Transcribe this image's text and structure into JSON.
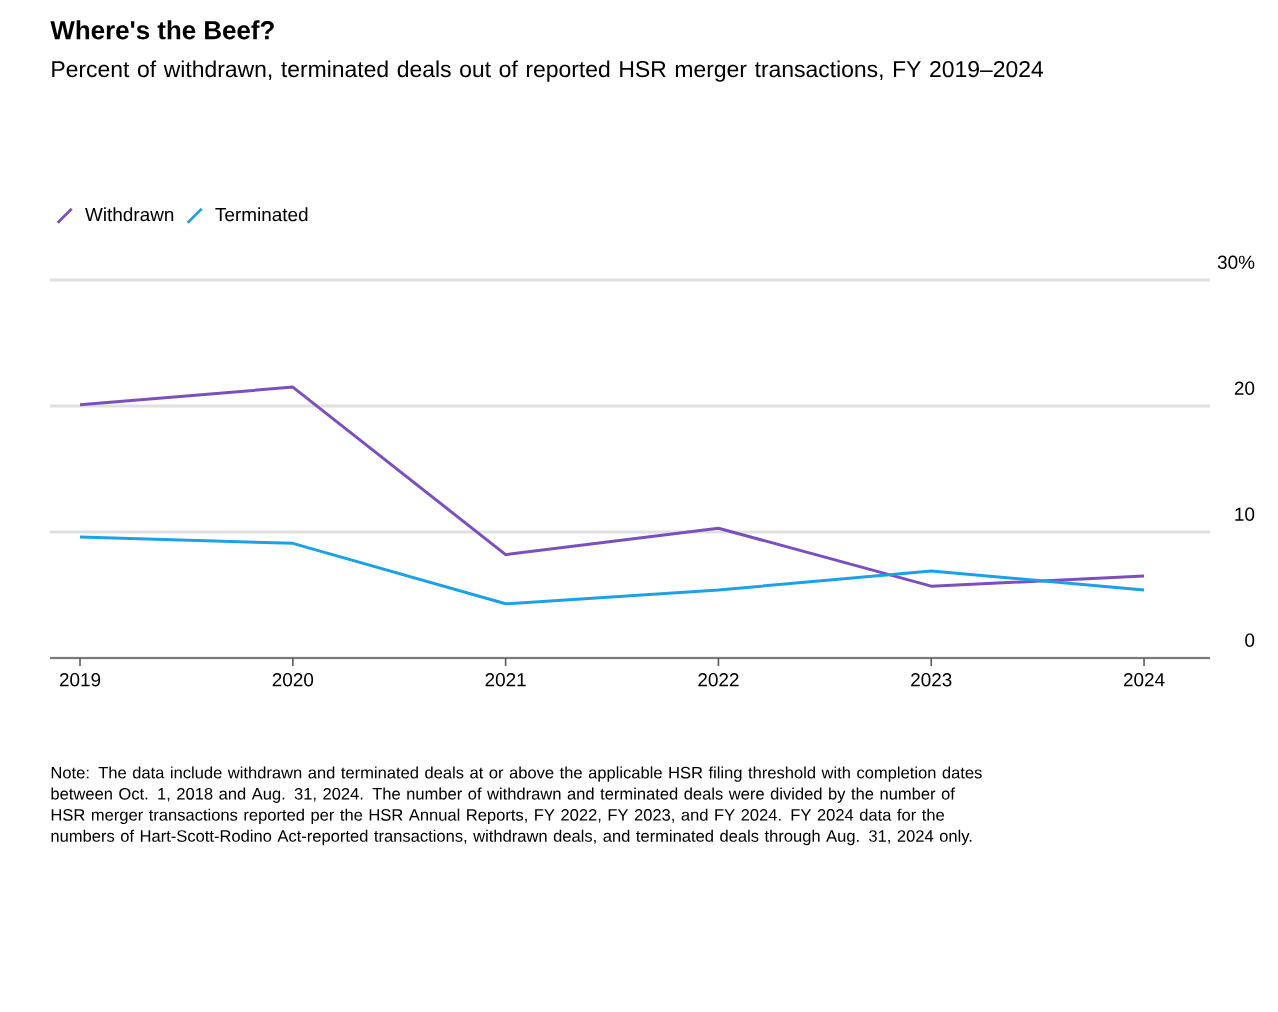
{
  "chart_data": {
    "type": "line",
    "title": "Where's the Beef?",
    "subtitle": "Percent of withdrawn, terminated deals out of reported HSR merger transactions, FY 2019–2024",
    "categories": [
      "2019",
      "2020",
      "2021",
      "2022",
      "2023",
      "2024"
    ],
    "series": [
      {
        "name": "Withdrawn",
        "color": "#7b4fbe",
        "values": [
          20.1,
          21.5,
          8.2,
          10.3,
          5.7,
          6.5
        ]
      },
      {
        "name": "Terminated",
        "color": "#1ea0e6",
        "values": [
          9.6,
          9.1,
          4.3,
          5.4,
          6.9,
          5.4
        ]
      }
    ],
    "ylim": [
      0,
      30
    ],
    "yticks": [
      0,
      10,
      20,
      {
        "value": 30,
        "label": "30%"
      }
    ],
    "grid": "y",
    "legend": "top left",
    "line_style": "solid",
    "annotations": [
      "Note: The data include withdrawn and terminated deals at or above the applicable HSR filing threshold with completion dates between Oct. 1, 2018 and Aug. 31, 2024. The number of withdrawn and terminated deals were divided by the number of HSR merger transactions reported per the HSR Annual Reports, FY 2022, FY 2023, and FY 2024. FY 2024 data for the numbers of Hart-Scott-Rodino Act-reported transactions, withdrawn deals, and terminated deals through Aug. 31, 2024 only."
    ]
  }
}
